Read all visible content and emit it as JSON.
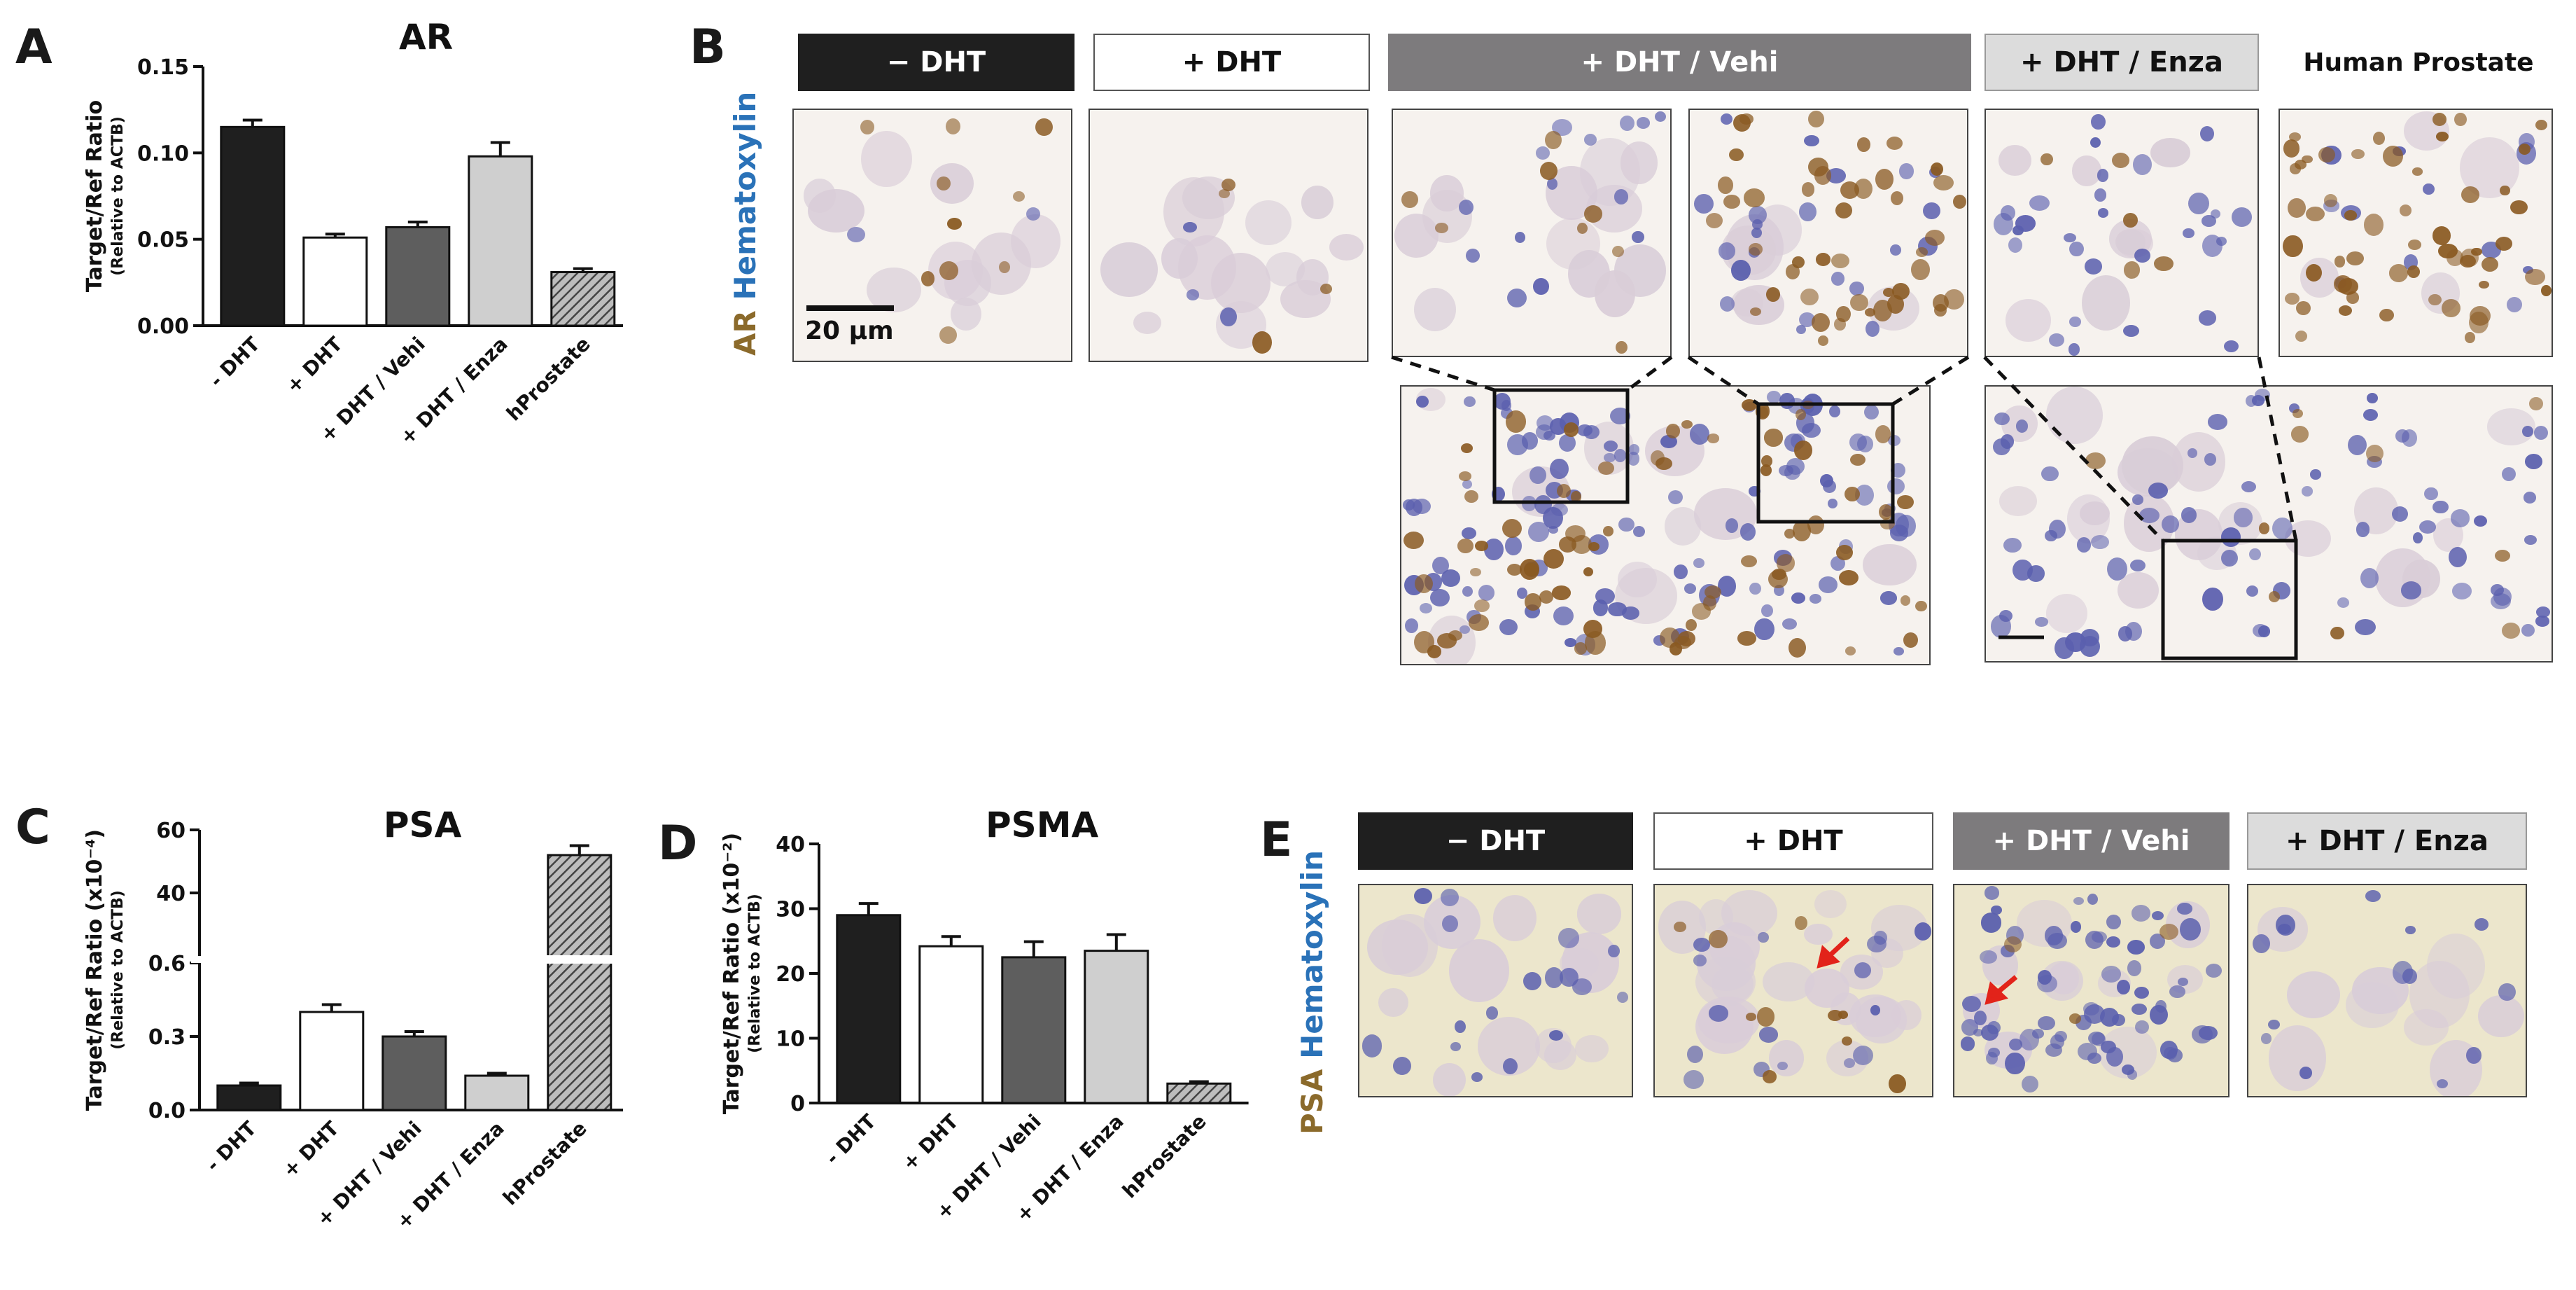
{
  "panels": {
    "A": "A",
    "B": "B",
    "C": "C",
    "D": "D",
    "E": "E"
  },
  "colors": {
    "black_bar": "#1f1f1f",
    "white_bar": "#ffffff",
    "dark_grey_bar": "#5e5e5e",
    "light_grey_bar": "#cfcfcf",
    "hatched_bar": "#888888",
    "ar_stain": "#8b6a2b",
    "hematoxylin": "#2a72b8"
  },
  "panel_b": {
    "headers": [
      "− DHT",
      "+ DHT",
      "+ DHT / Vehi",
      "+ DHT / Enza",
      "Human Prostate"
    ],
    "stain_label_1": "AR",
    "stain_label_2": "Hematoxylin",
    "scale_bar": "20 µm"
  },
  "panel_e": {
    "headers": [
      "− DHT",
      "+ DHT",
      "+ DHT / Vehi",
      "+ DHT / Enza"
    ],
    "stain_label_1": "PSA",
    "stain_label_2": "Hematoxylin"
  },
  "chart_data": [
    {
      "panel": "A",
      "type": "bar",
      "title": "AR",
      "ylabel": "Target/Ref Ratio",
      "ylabel_sub": "(Relative to ACTB)",
      "categories": [
        "- DHT",
        "+ DHT",
        "+ DHT / Vehi",
        "+ DHT / Enza",
        "hProstate"
      ],
      "values": [
        0.115,
        0.051,
        0.057,
        0.098,
        0.031
      ],
      "errors": [
        0.004,
        0.002,
        0.003,
        0.008,
        0.002
      ],
      "ylim": [
        0,
        0.15
      ],
      "yticks": [
        "0.00",
        "0.05",
        "0.10",
        "0.15"
      ]
    },
    {
      "panel": "C",
      "type": "bar",
      "title": "PSA",
      "ylabel": "Target/Ref Ratio (x10⁻⁴)",
      "ylabel_sub": "(Relative to ACTB)",
      "categories": [
        "- DHT",
        "+ DHT",
        "+ DHT / Vehi",
        "+ DHT / Enza",
        "hProstate"
      ],
      "values": [
        0.1,
        0.4,
        0.3,
        0.14,
        52
      ],
      "errors": [
        0.01,
        0.03,
        0.02,
        0.01,
        3
      ],
      "axis_break": true,
      "lower_ylim": [
        0,
        0.6
      ],
      "upper_ylim": [
        20,
        60
      ],
      "yticks_lower": [
        "0.0",
        "0.3",
        "0.6"
      ],
      "yticks_upper": [
        "40",
        "60"
      ]
    },
    {
      "panel": "D",
      "type": "bar",
      "title": "PSMA",
      "ylabel": "Target/Ref Ratio (x10⁻²)",
      "ylabel_sub": "(Relative to ACTB)",
      "categories": [
        "- DHT",
        "+ DHT",
        "+ DHT / Vehi",
        "+ DHT / Enza",
        "hProstate"
      ],
      "values": [
        29,
        24.2,
        22.5,
        23.5,
        3
      ],
      "errors": [
        1.8,
        1.5,
        2.4,
        2.5,
        0.3
      ],
      "ylim": [
        0,
        40
      ],
      "yticks": [
        "0",
        "10",
        "20",
        "30",
        "40"
      ]
    }
  ]
}
